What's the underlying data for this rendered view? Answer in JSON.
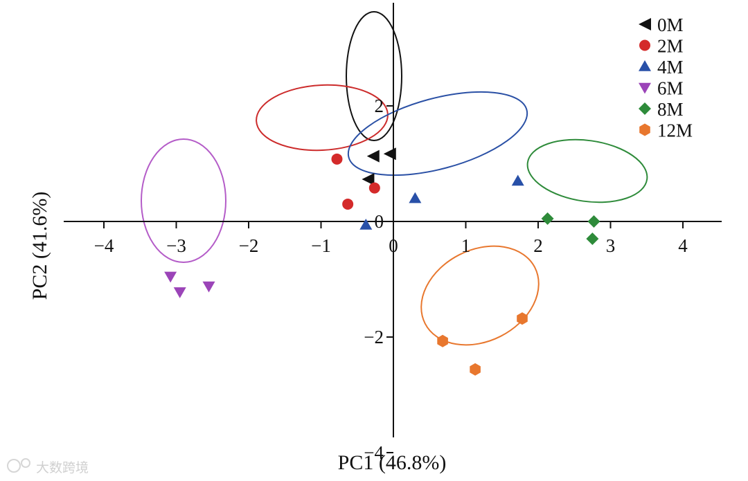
{
  "chart_data": {
    "type": "scatter",
    "title": "",
    "xlabel": "PC1 (46.8%)",
    "ylabel": "PC2 (41.6%)",
    "xlim": [
      -4.5,
      4.5
    ],
    "ylim": [
      -4.4,
      3.4
    ],
    "x_ticks": [
      -4,
      -3,
      -2,
      -1,
      0,
      1,
      2,
      3,
      4
    ],
    "x_tick_labels": [
      "−4",
      "−3",
      "−2",
      "−1",
      "0",
      "1",
      "2",
      "3",
      "4"
    ],
    "y_ticks": [
      2,
      0,
      -2,
      -4
    ],
    "y_tick_labels": [
      "2",
      "0",
      "−2",
      "−4"
    ],
    "grid": false,
    "legend_position": "top-right",
    "series": [
      {
        "name": "0M",
        "marker": "triangle-left",
        "color": "#111111",
        "ellipse_color": "#111111",
        "points": [
          [
            -0.28,
            1.13
          ],
          [
            -0.35,
            0.73
          ],
          [
            -0.05,
            1.17
          ]
        ]
      },
      {
        "name": "2M",
        "marker": "circle",
        "color": "#d42a2a",
        "ellipse_color": "#cc2b2b",
        "points": [
          [
            -0.78,
            1.08
          ],
          [
            -0.26,
            0.58
          ],
          [
            -0.63,
            0.3
          ]
        ]
      },
      {
        "name": "4M",
        "marker": "triangle-up",
        "color": "#2850a8",
        "ellipse_color": "#2a50a5",
        "points": [
          [
            1.72,
            0.7
          ],
          [
            0.3,
            0.4
          ],
          [
            -0.38,
            -0.06
          ]
        ]
      },
      {
        "name": "6M",
        "marker": "triangle-down",
        "color": "#9b44b8",
        "ellipse_color": "#b45cc8",
        "points": [
          [
            -3.08,
            -0.95
          ],
          [
            -2.55,
            -1.12
          ],
          [
            -2.95,
            -1.22
          ]
        ]
      },
      {
        "name": "8M",
        "marker": "diamond",
        "color": "#2e8b3a",
        "ellipse_color": "#2e8b3a",
        "points": [
          [
            2.13,
            0.05
          ],
          [
            2.77,
            0.0
          ],
          [
            2.75,
            -0.3
          ]
        ]
      },
      {
        "name": "12M",
        "marker": "hexagon",
        "color": "#e8772e",
        "ellipse_color": "#e8772e",
        "points": [
          [
            1.78,
            -1.68
          ],
          [
            0.68,
            -2.07
          ],
          [
            1.13,
            -2.56
          ]
        ]
      }
    ]
  },
  "watermark": "大数跨境"
}
